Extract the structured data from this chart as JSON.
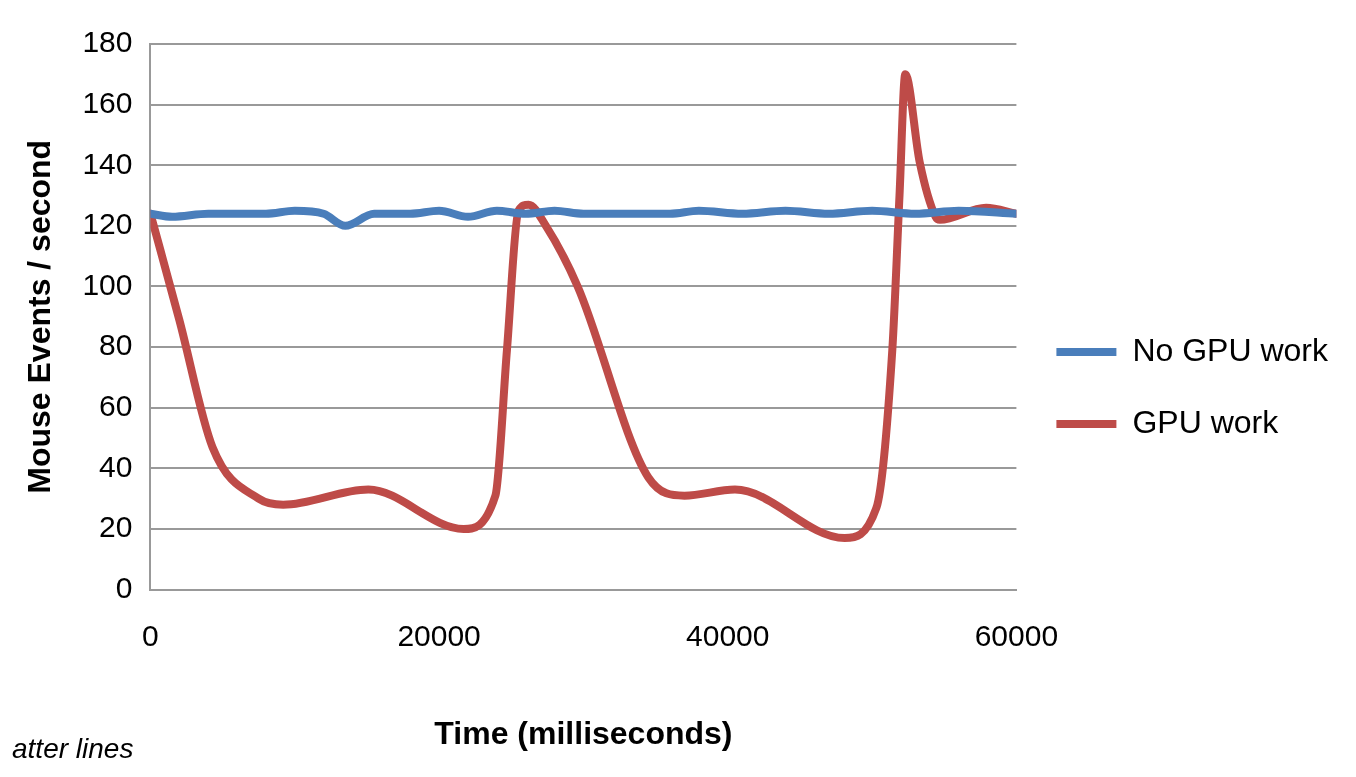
{
  "chart_data": {
    "type": "line",
    "xlabel": "Time (milliseconds)",
    "ylabel": "Mouse Events / second",
    "xlim": [
      0,
      60000
    ],
    "xticks": [
      0,
      20000,
      40000,
      60000
    ],
    "ylim": [
      0,
      180
    ],
    "yticks": [
      0,
      20,
      40,
      60,
      80,
      100,
      120,
      140,
      160,
      180
    ],
    "grid": "y",
    "legend": "right",
    "marker": "none",
    "line_style": "solid",
    "annotations": [
      "atter lines"
    ],
    "series": [
      {
        "name": "No GPU work",
        "color": "#4a7ebb",
        "x": [
          0,
          1500,
          4000,
          8000,
          10000,
          12000,
          13500,
          15500,
          18000,
          20000,
          22000,
          24000,
          26000,
          28000,
          30000,
          36000,
          38000,
          41000,
          44000,
          47000,
          50000,
          53000,
          56000,
          60000
        ],
        "values": [
          124,
          123,
          124,
          124,
          125,
          124,
          120,
          124,
          124,
          125,
          123,
          125,
          124,
          125,
          124,
          124,
          125,
          124,
          125,
          124,
          125,
          124,
          125,
          124
        ]
      },
      {
        "name": "GPU work",
        "color": "#be4b48",
        "x": [
          0,
          2000,
          4300,
          7500,
          9200,
          15100,
          21700,
          23900,
          24700,
          25500,
          26200,
          27400,
          29600,
          34500,
          37000,
          40500,
          48100,
          50300,
          51400,
          51900,
          52300,
          53300,
          54400,
          54700,
          57900,
          60000
        ],
        "values": [
          124,
          89,
          47,
          30,
          28,
          33,
          20,
          31,
          79,
          125,
          127,
          120,
          100,
          37,
          31,
          33,
          17,
          27,
          79,
          130,
          170,
          141,
          123,
          122,
          126,
          124
        ]
      }
    ]
  }
}
